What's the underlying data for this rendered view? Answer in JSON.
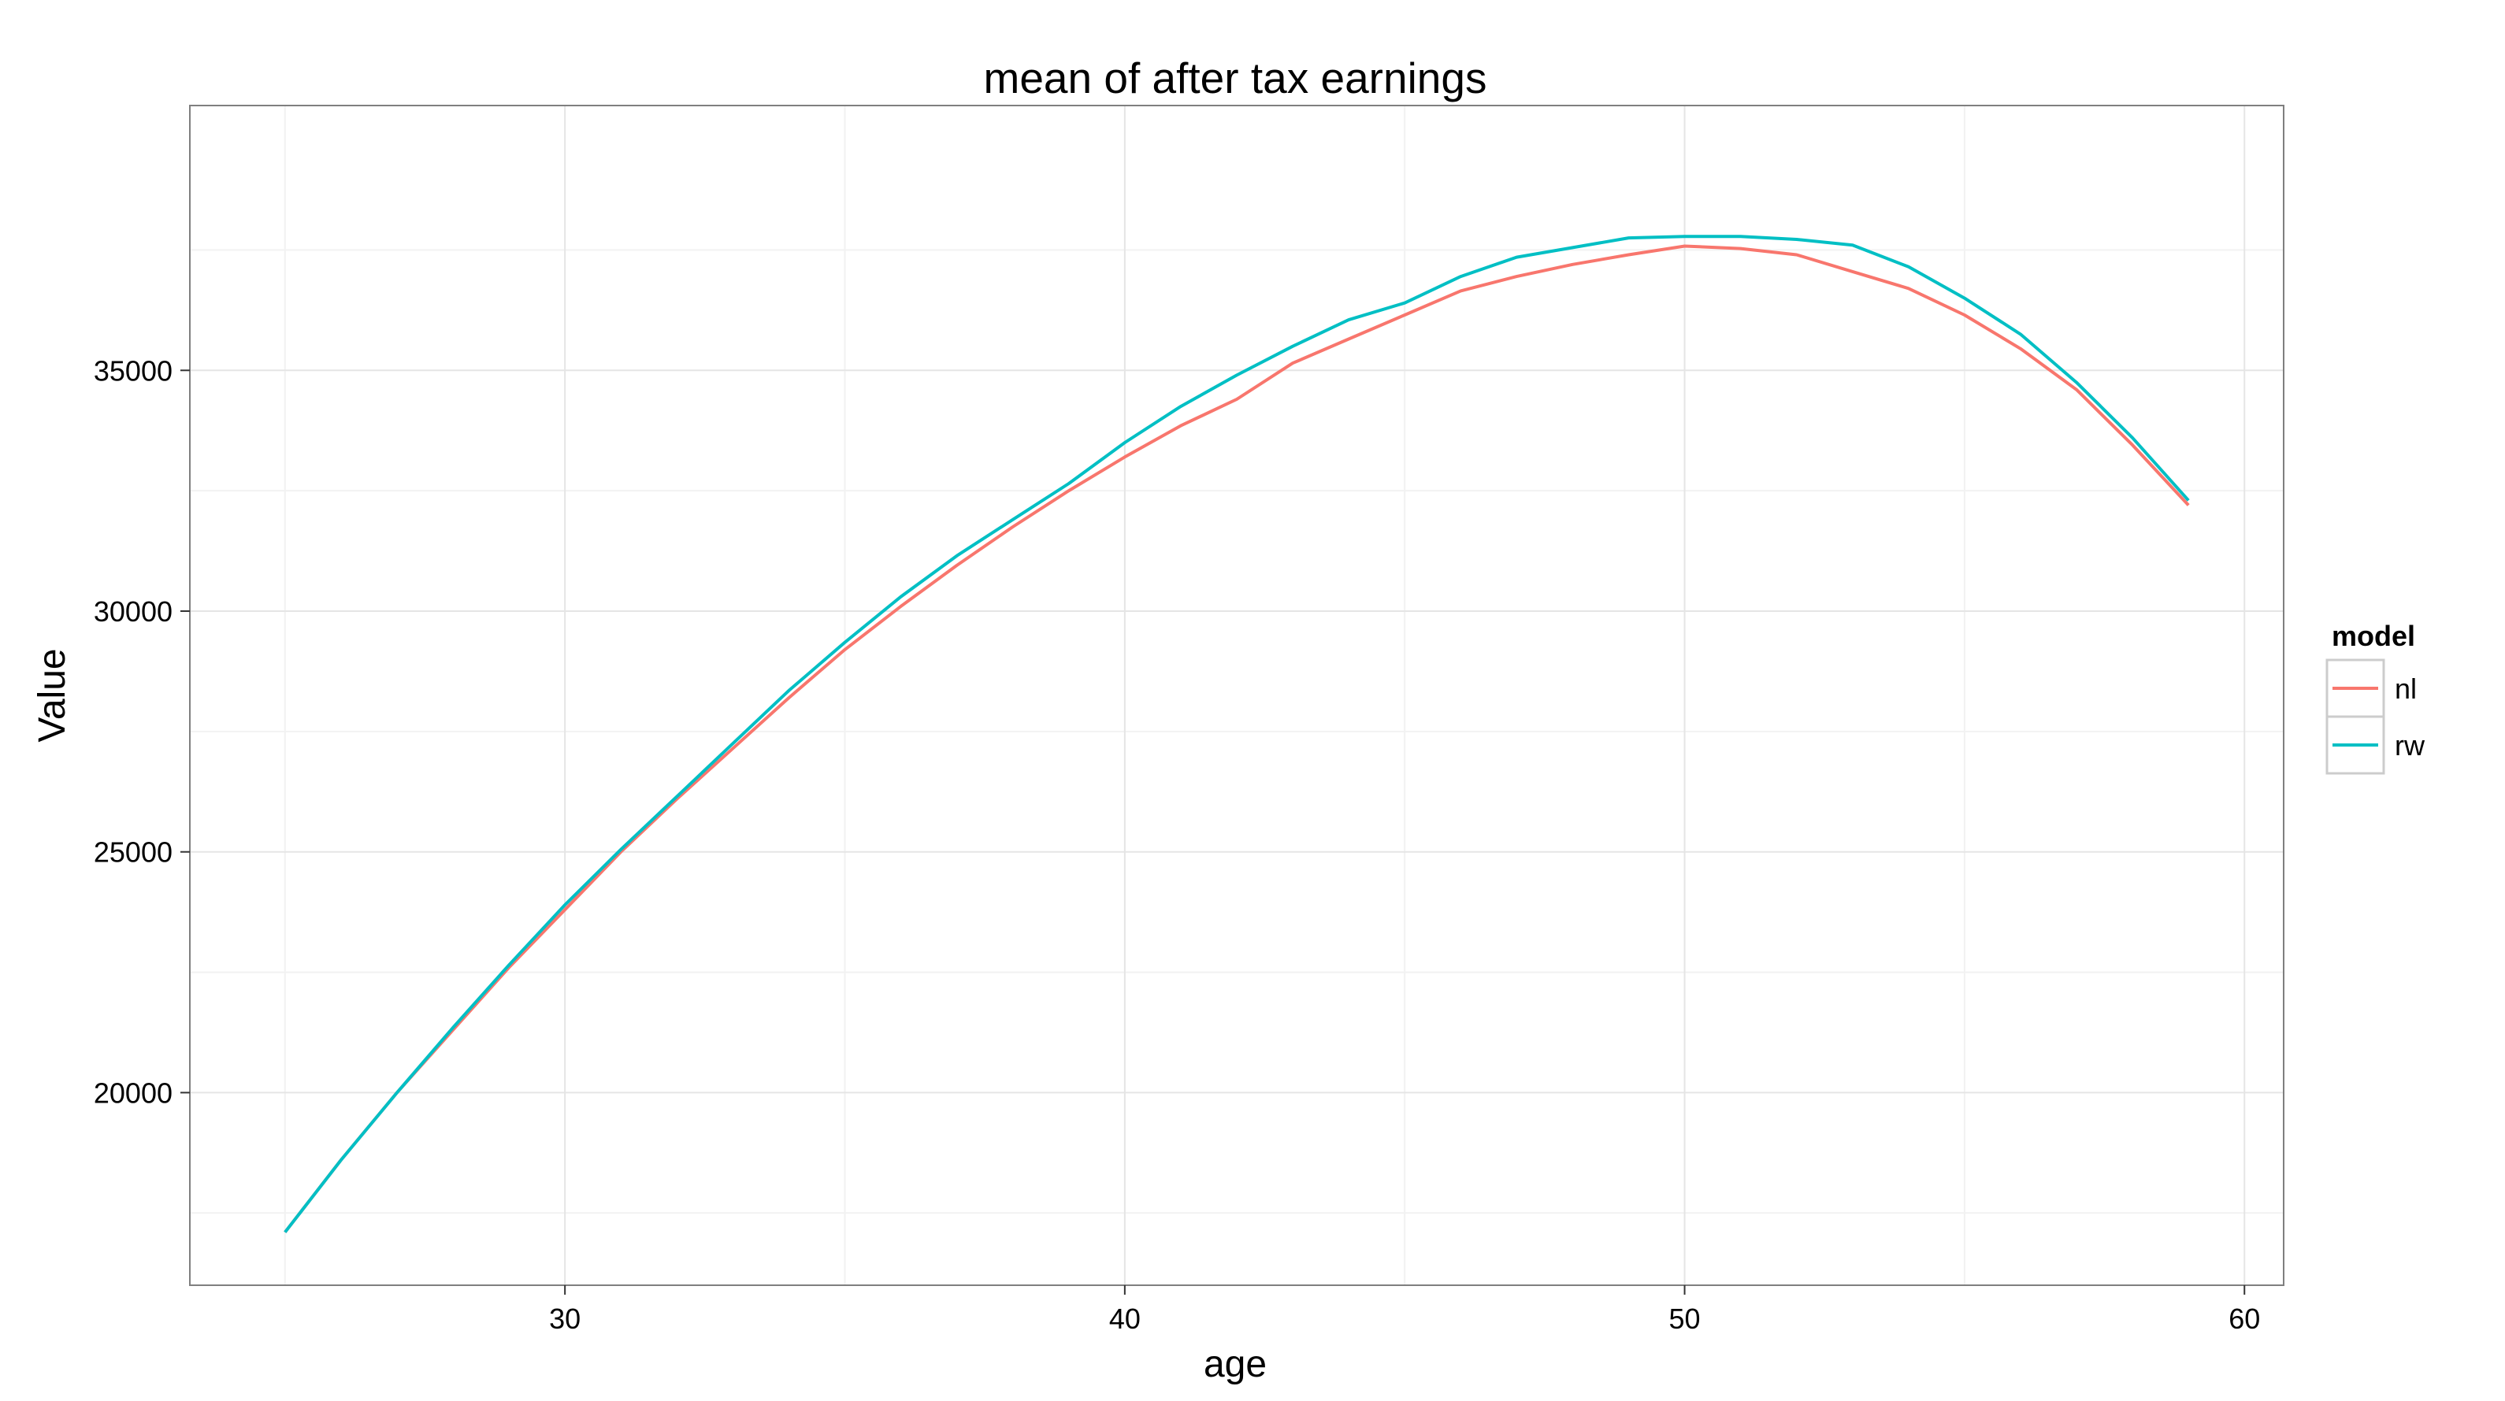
{
  "chart_data": {
    "type": "line",
    "title": "mean of after tax earnings",
    "xlabel": "age",
    "ylabel": "Value",
    "xlim": [
      23.3,
      60.7
    ],
    "ylim": [
      16000,
      40500
    ],
    "x_ticks": [
      30,
      40,
      50,
      60
    ],
    "x_tick_labels": [
      "30",
      "40",
      "50",
      "60"
    ],
    "y_ticks": [
      20000,
      25000,
      30000,
      35000
    ],
    "y_tick_labels": [
      "20000",
      "25000",
      "30000",
      "35000"
    ],
    "grid": true,
    "legend": {
      "title": "model",
      "position": "right"
    },
    "x": [
      25,
      26,
      27,
      28,
      29,
      30,
      31,
      32,
      33,
      34,
      35,
      36,
      37,
      38,
      39,
      40,
      41,
      42,
      43,
      44,
      45,
      46,
      47,
      48,
      49,
      50,
      51,
      52,
      53,
      54,
      55,
      56,
      57,
      58,
      59
    ],
    "series": [
      {
        "name": "nl",
        "color": "#F8766D",
        "values": [
          17100,
          18600,
          20000,
          21300,
          22600,
          23800,
          25000,
          26100,
          27150,
          28200,
          29200,
          30100,
          30950,
          31750,
          32500,
          33200,
          33850,
          34400,
          35150,
          35650,
          36150,
          36650,
          36950,
          37200,
          37400,
          37580,
          37530,
          37400,
          37050,
          36700,
          36150,
          35450,
          34600,
          33450,
          32200
        ]
      },
      {
        "name": "rw",
        "color": "#00BFC4",
        "values": [
          17100,
          18600,
          20000,
          21350,
          22650,
          23900,
          25050,
          26150,
          27250,
          28350,
          29350,
          30300,
          31150,
          31900,
          32650,
          33500,
          34250,
          34900,
          35500,
          36050,
          36400,
          36950,
          37350,
          37550,
          37750,
          37780,
          37780,
          37720,
          37600,
          37150,
          36500,
          35750,
          34750,
          33600,
          32300
        ]
      }
    ]
  }
}
